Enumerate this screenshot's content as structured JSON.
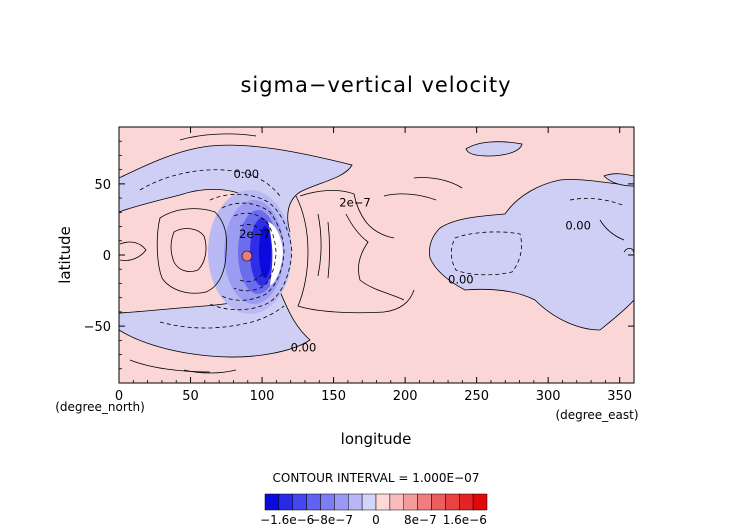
{
  "chart_data": {
    "type": "heatmap",
    "title": "sigma−vertical velocity",
    "xlabel": "longitude",
    "ylabel": "latitude",
    "xlim": [
      0,
      360
    ],
    "ylim": [
      -90,
      90
    ],
    "x_ticks": [
      0,
      50,
      100,
      150,
      200,
      250,
      300,
      350
    ],
    "y_ticks": [
      -50,
      0,
      50
    ],
    "x_units": "(degree_east)",
    "y_units": "(degree_north)",
    "contour_interval_text": "CONTOUR INTERVAL = 1.000E−07",
    "contour_labels": [
      {
        "text": "0.00",
        "lon": 80,
        "lat": 54
      },
      {
        "text": "2e−7",
        "lon": 154,
        "lat": 34
      },
      {
        "text": "2e−7",
        "lon": 84,
        "lat": 12
      },
      {
        "text": "0.00",
        "lon": 312,
        "lat": 18
      },
      {
        "text": "0.00",
        "lon": 230,
        "lat": -20
      },
      {
        "text": "0.00",
        "lon": 120,
        "lat": -68
      }
    ],
    "colorbar": {
      "tick_labels": [
        "−1.6e−6",
        "−8e−7",
        "0",
        "8e−7",
        "1.6e−6"
      ],
      "tick_values": [
        -1.6e-06,
        -8e-07,
        0,
        8e-07,
        1.6e-06
      ],
      "colors": [
        "#0a0adc",
        "#2a2ae6",
        "#4646ee",
        "#6262f2",
        "#7e7ef4",
        "#9a9af6",
        "#b6b6f8",
        "#d4d4fa",
        "#fcd8d8",
        "#f8bcbc",
        "#f49c9c",
        "#f07e7e",
        "#ec5e5e",
        "#e84242",
        "#e42424",
        "#e00a0a"
      ]
    },
    "colors": {
      "positive_background": "#fbd6d6",
      "negative_fill": "#cfcff6",
      "strong_negative": "#1414e0"
    }
  }
}
